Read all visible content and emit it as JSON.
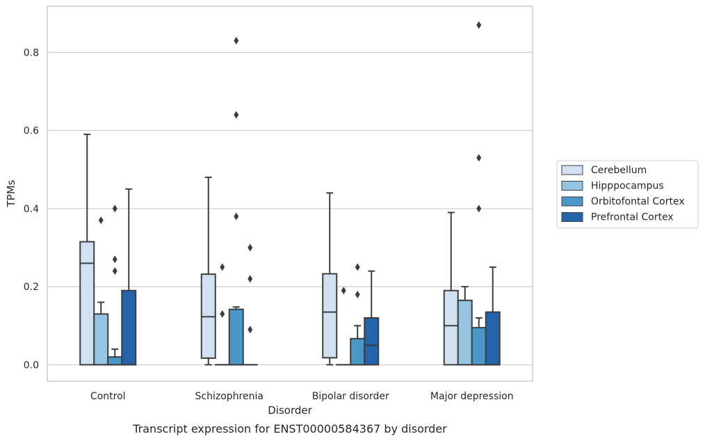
{
  "chart_data": {
    "type": "box",
    "caption": "Transcript expression for ENST00000584367 by disorder",
    "xlabel": "Disorder",
    "ylabel": "TPMs",
    "ylim": [
      -0.042,
      0.918
    ],
    "yticks": [
      "0.0",
      "0.2",
      "0.4",
      "0.6",
      "0.8"
    ],
    "ytick_values": [
      0.0,
      0.2,
      0.4,
      0.6,
      0.8
    ],
    "grid": "horizontal",
    "legend_position": "right",
    "categories": [
      "Control",
      "Schizophrenia",
      "Bipolar disorder",
      "Major depression"
    ],
    "series": [
      {
        "name": "Cerebellum",
        "color": "#d0e1f2",
        "boxes": [
          {
            "min": 0.0,
            "q1": 0.0,
            "median": 0.26,
            "q3": 0.315,
            "max": 0.59,
            "outliers": []
          },
          {
            "min": 0.0,
            "q1": 0.017,
            "median": 0.123,
            "q3": 0.232,
            "max": 0.48,
            "outliers": []
          },
          {
            "min": 0.0,
            "q1": 0.018,
            "median": 0.135,
            "q3": 0.233,
            "max": 0.44,
            "outliers": []
          },
          {
            "min": 0.0,
            "q1": 0.0,
            "median": 0.1,
            "q3": 0.19,
            "max": 0.39,
            "outliers": []
          }
        ]
      },
      {
        "name": "Hipppocampus",
        "color": "#94c4df",
        "boxes": [
          {
            "min": 0.0,
            "q1": 0.0,
            "median": 0.0,
            "q3": 0.13,
            "max": 0.16,
            "outliers": [
              0.37
            ]
          },
          {
            "min": 0.0,
            "q1": 0.0,
            "median": 0.0,
            "q3": 0.0,
            "max": 0.0,
            "outliers": [
              0.13,
              0.25
            ]
          },
          {
            "min": 0.0,
            "q1": 0.0,
            "median": 0.0,
            "q3": 0.0,
            "max": 0.0,
            "outliers": [
              0.19
            ]
          },
          {
            "min": 0.0,
            "q1": 0.0,
            "median": 0.0,
            "q3": 0.165,
            "max": 0.2,
            "outliers": []
          }
        ]
      },
      {
        "name": "Orbitofontal Cortex",
        "color": "#4a98c9",
        "boxes": [
          {
            "min": 0.0,
            "q1": 0.0,
            "median": 0.0,
            "q3": 0.02,
            "max": 0.04,
            "outliers": [
              0.24,
              0.27,
              0.4
            ]
          },
          {
            "min": 0.0,
            "q1": 0.0,
            "median": 0.0,
            "q3": 0.142,
            "max": 0.148,
            "outliers": [
              0.38,
              0.64,
              0.83
            ]
          },
          {
            "min": 0.0,
            "q1": 0.0,
            "median": 0.0,
            "q3": 0.067,
            "max": 0.1,
            "outliers": [
              0.18,
              0.25
            ]
          },
          {
            "min": 0.0,
            "q1": 0.0,
            "median": 0.0,
            "q3": 0.095,
            "max": 0.12,
            "outliers": [
              0.4,
              0.53,
              0.87
            ]
          }
        ]
      },
      {
        "name": "Prefrontal Cortex",
        "color": "#2364aa",
        "boxes": [
          {
            "min": 0.0,
            "q1": 0.0,
            "median": 0.0,
            "q3": 0.19,
            "max": 0.45,
            "outliers": []
          },
          {
            "min": 0.0,
            "q1": 0.0,
            "median": 0.0,
            "q3": 0.0,
            "max": 0.0,
            "outliers": [
              0.09,
              0.22,
              0.3
            ]
          },
          {
            "min": 0.0,
            "q1": 0.0,
            "median": 0.05,
            "q3": 0.12,
            "max": 0.24,
            "outliers": []
          },
          {
            "min": 0.0,
            "q1": 0.0,
            "median": 0.0,
            "q3": 0.135,
            "max": 0.25,
            "outliers": []
          }
        ]
      }
    ]
  }
}
